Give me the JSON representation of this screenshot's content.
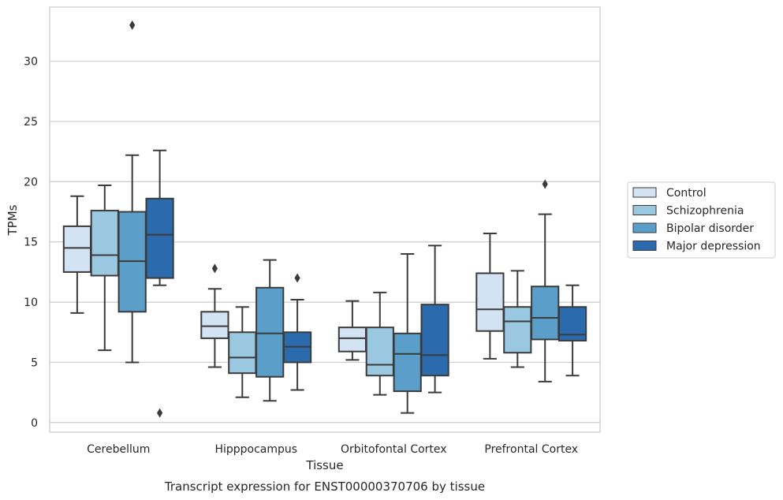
{
  "caption": "Transcript expression for ENST00000370706 by tissue",
  "chart_data": {
    "type": "box",
    "xlabel": "Tissue",
    "ylabel": "TPMs",
    "ylim": [
      -0.8,
      34.5
    ],
    "yticks": [
      0,
      5,
      10,
      15,
      20,
      25,
      30
    ],
    "grid": "horizontal",
    "legend_position": "right",
    "categories": [
      "Cerebellum",
      "Hipppocampus",
      "Orbitofontal Cortex",
      "Prefrontal Cortex"
    ],
    "series": [
      {
        "name": "Control",
        "color": "#d3e3f3",
        "boxes": [
          {
            "whislo": 9.1,
            "q1": 12.5,
            "med": 14.5,
            "q3": 16.3,
            "whishi": 18.8,
            "fliers": []
          },
          {
            "whislo": 4.6,
            "q1": 7.0,
            "med": 8.0,
            "q3": 9.2,
            "whishi": 11.1,
            "fliers": [
              12.8
            ]
          },
          {
            "whislo": 5.2,
            "q1": 5.9,
            "med": 7.0,
            "q3": 7.9,
            "whishi": 10.1,
            "fliers": []
          },
          {
            "whislo": 5.3,
            "q1": 7.6,
            "med": 9.4,
            "q3": 12.4,
            "whishi": 15.7,
            "fliers": []
          }
        ]
      },
      {
        "name": "Schizophrenia",
        "color": "#9ac8e0",
        "boxes": [
          {
            "whislo": 6.0,
            "q1": 12.2,
            "med": 13.9,
            "q3": 17.6,
            "whishi": 19.7,
            "fliers": []
          },
          {
            "whislo": 2.1,
            "q1": 4.1,
            "med": 5.4,
            "q3": 7.5,
            "whishi": 9.6,
            "fliers": []
          },
          {
            "whislo": 2.3,
            "q1": 3.9,
            "med": 4.8,
            "q3": 7.9,
            "whishi": 10.8,
            "fliers": []
          },
          {
            "whislo": 4.6,
            "q1": 5.8,
            "med": 8.4,
            "q3": 9.6,
            "whishi": 12.6,
            "fliers": []
          }
        ]
      },
      {
        "name": "Bipolar disorder",
        "color": "#5a9ec9",
        "boxes": [
          {
            "whislo": 5.0,
            "q1": 9.2,
            "med": 13.4,
            "q3": 17.5,
            "whishi": 22.2,
            "fliers": [
              33.0
            ]
          },
          {
            "whislo": 1.8,
            "q1": 3.8,
            "med": 7.4,
            "q3": 11.2,
            "whishi": 13.5,
            "fliers": []
          },
          {
            "whislo": 0.8,
            "q1": 2.6,
            "med": 5.7,
            "q3": 7.4,
            "whishi": 14.0,
            "fliers": []
          },
          {
            "whislo": 3.4,
            "q1": 6.9,
            "med": 8.7,
            "q3": 11.3,
            "whishi": 17.3,
            "fliers": [
              19.8
            ]
          }
        ]
      },
      {
        "name": "Major depression",
        "color": "#2a6aad",
        "boxes": [
          {
            "whislo": 11.4,
            "q1": 12.0,
            "med": 15.6,
            "q3": 18.6,
            "whishi": 22.6,
            "fliers": [
              0.8
            ]
          },
          {
            "whislo": 2.7,
            "q1": 5.0,
            "med": 6.3,
            "q3": 7.5,
            "whishi": 10.2,
            "fliers": [
              12.0
            ]
          },
          {
            "whislo": 2.5,
            "q1": 3.9,
            "med": 5.6,
            "q3": 9.8,
            "whishi": 14.7,
            "fliers": []
          },
          {
            "whislo": 3.9,
            "q1": 6.8,
            "med": 7.3,
            "q3": 9.6,
            "whishi": 11.4,
            "fliers": []
          }
        ]
      }
    ]
  }
}
